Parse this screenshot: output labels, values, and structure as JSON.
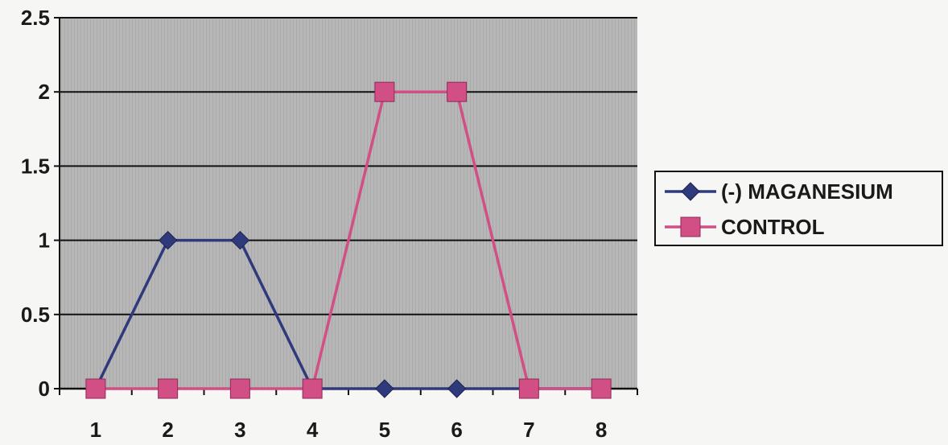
{
  "chart_data": {
    "type": "line",
    "categories": [
      "1",
      "2",
      "3",
      "4",
      "5",
      "6",
      "7",
      "8"
    ],
    "y_ticks": [
      "0",
      "0.5",
      "1",
      "1.5",
      "2",
      "2.5"
    ],
    "ylim": [
      0,
      2.5
    ],
    "grid": true,
    "legend_position": "right",
    "plot_background": "#b3b3b3",
    "series": [
      {
        "name": "(-) MAGANESIUM",
        "color": "#2e3a7c",
        "marker": "diamond",
        "values": [
          0,
          1,
          1,
          0,
          0,
          0,
          0,
          0
        ]
      },
      {
        "name": "CONTROL",
        "color": "#d24f86",
        "marker": "square",
        "values": [
          0,
          0,
          0,
          0,
          2,
          2,
          0,
          0
        ]
      }
    ]
  }
}
